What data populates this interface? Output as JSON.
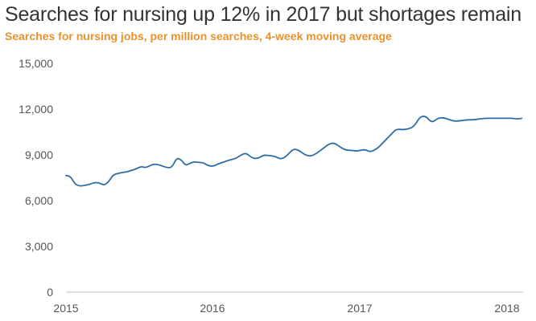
{
  "colors": {
    "title": "#333333",
    "subtitle": "#E8912D",
    "line": "#2E6DA4",
    "axis": "#BFBFBF",
    "tick_text": "#555555"
  },
  "chart_data": {
    "type": "line",
    "title": "Searches for nursing up 12% in 2017 but shortages remain",
    "subtitle": "Searches for nursing jobs, per million searches, 4-week moving average",
    "xlabel": "",
    "ylabel": "",
    "x_ticks": [
      "2015",
      "2016",
      "2017",
      "2018"
    ],
    "xlim": [
      2015.0,
      2018.1
    ],
    "y_ticks": [
      "0",
      "3,000",
      "6,000",
      "9,000",
      "12,000",
      "15,000"
    ],
    "ylim": [
      0,
      15000
    ],
    "grid": false,
    "legend": "none",
    "series": [
      {
        "name": "",
        "x": [
          2015.0,
          2015.03,
          2015.06,
          2015.09,
          2015.13,
          2015.17,
          2015.2,
          2015.23,
          2015.26,
          2015.29,
          2015.32,
          2015.36,
          2015.39,
          2015.42,
          2015.45,
          2015.48,
          2015.51,
          2015.54,
          2015.57,
          2015.6,
          2015.63,
          2015.66,
          2015.69,
          2015.72,
          2015.75,
          2015.78,
          2015.81,
          2015.84,
          2015.87,
          2015.9,
          2015.93,
          2015.96,
          2016.0,
          2016.03,
          2016.06,
          2016.09,
          2016.12,
          2016.15,
          2016.18,
          2016.22,
          2016.26,
          2016.3,
          2016.34,
          2016.38,
          2016.42,
          2016.46,
          2016.5,
          2016.54,
          2016.58,
          2016.62,
          2016.66,
          2016.7,
          2016.74,
          2016.78,
          2016.82,
          2016.86,
          2016.9,
          2016.94,
          2016.97,
          2017.0,
          2017.03,
          2017.06,
          2017.09,
          2017.12,
          2017.16,
          2017.2,
          2017.24,
          2017.28,
          2017.32,
          2017.36,
          2017.4,
          2017.44,
          2017.48,
          2017.52,
          2017.56,
          2017.6,
          2017.64,
          2017.68,
          2017.72,
          2017.76,
          2017.8,
          2017.84,
          2017.88,
          2017.92,
          2017.96,
          2018.0,
          2018.03,
          2018.06,
          2018.09
        ],
        "values": [
          7650,
          7600,
          7100,
          6950,
          7000,
          7100,
          7200,
          7150,
          7000,
          7250,
          7700,
          7800,
          7850,
          7900,
          8000,
          8100,
          8250,
          8150,
          8300,
          8400,
          8350,
          8250,
          8150,
          8200,
          8800,
          8700,
          8300,
          8450,
          8550,
          8500,
          8500,
          8300,
          8250,
          8400,
          8500,
          8600,
          8700,
          8750,
          8950,
          9150,
          8800,
          8750,
          9000,
          8950,
          8900,
          8700,
          8950,
          9400,
          9300,
          9000,
          8900,
          9100,
          9400,
          9700,
          9800,
          9500,
          9300,
          9300,
          9250,
          9300,
          9350,
          9200,
          9300,
          9500,
          9900,
          10300,
          10700,
          10650,
          10700,
          10850,
          11500,
          11550,
          11100,
          11400,
          11450,
          11300,
          11200,
          11250,
          11300,
          11300,
          11350,
          11400,
          11400,
          11400,
          11400,
          11400,
          11400,
          11350,
          11400
        ]
      }
    ]
  }
}
